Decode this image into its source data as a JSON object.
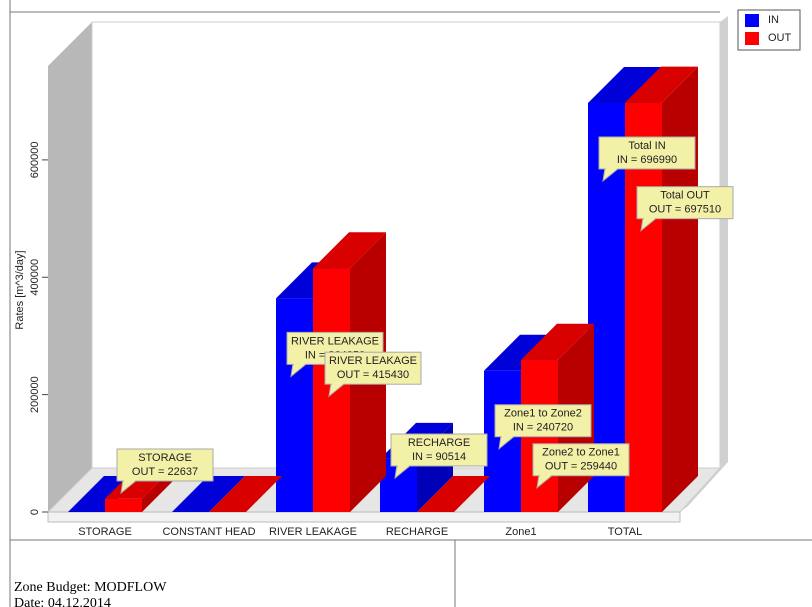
{
  "chart_data": {
    "type": "bar3d",
    "y_label": "Rates [m^3/day]",
    "categories": [
      "STORAGE",
      "CONSTANT HEAD",
      "RIVER LEAKAGE",
      "RECHARGE",
      "Zone1",
      "TOTAL"
    ],
    "series": [
      {
        "name": "IN",
        "color": "#0000ff",
        "values": [
          0,
          0,
          364050,
          90514,
          240720,
          696990
        ],
        "label_titles": [
          null,
          null,
          "RIVER LEAKAGE",
          "RECHARGE",
          "Zone1 to Zone2",
          "Total IN"
        ],
        "value_labels": [
          null,
          null,
          "IN = 364050",
          "IN = 90514",
          "IN = 240720",
          "IN = 696990"
        ]
      },
      {
        "name": "OUT",
        "color": "#ff0000",
        "values": [
          22637,
          0,
          415430,
          0,
          259440,
          697510
        ],
        "label_titles": [
          "STORAGE",
          null,
          "RIVER LEAKAGE",
          null,
          "Zone2 to Zone1",
          "Total OUT"
        ],
        "value_labels": [
          "OUT = 22637",
          null,
          "OUT = 415430",
          null,
          "OUT = 259440",
          "OUT = 697510"
        ]
      }
    ],
    "ylim": [
      0,
      760000
    ],
    "yticks": [
      0,
      200000,
      400000,
      600000
    ],
    "legend": "top-right"
  },
  "footer": {
    "title": "Zone Budget: MODFLOW",
    "date": "Date: 04.12.2014"
  }
}
